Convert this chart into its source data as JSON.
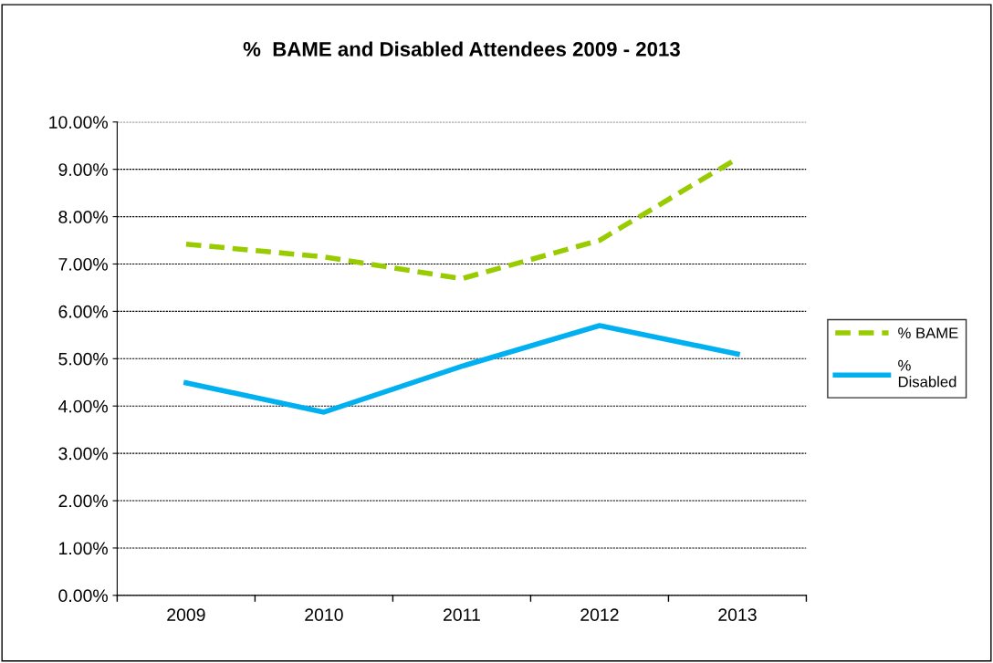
{
  "chart_data": {
    "type": "line",
    "title": "%  BAME and Disabled Attendees 2009 - 2013",
    "categories": [
      "2009",
      "2010",
      "2011",
      "2012",
      "2013"
    ],
    "series": [
      {
        "name": "% BAME",
        "color": "#99cc00",
        "line_style": "dashed",
        "values": [
          7.42,
          7.15,
          6.69,
          7.5,
          9.23
        ]
      },
      {
        "name": "% Disabled",
        "color": "#00b0f0",
        "line_style": "solid",
        "values": [
          4.49,
          3.87,
          4.84,
          5.7,
          5.1
        ]
      }
    ],
    "ylim": [
      0,
      10
    ],
    "yticks": [
      {
        "value": 0,
        "label": "0.00%"
      },
      {
        "value": 1,
        "label": "1.00%"
      },
      {
        "value": 2,
        "label": "2.00%"
      },
      {
        "value": 3,
        "label": "3.00%"
      },
      {
        "value": 4,
        "label": "4.00%"
      },
      {
        "value": 5,
        "label": "5.00%"
      },
      {
        "value": 6,
        "label": "6.00%"
      },
      {
        "value": 7,
        "label": "7.00%"
      },
      {
        "value": 8,
        "label": "8.00%"
      },
      {
        "value": 9,
        "label": "9.00%"
      },
      {
        "value": 10,
        "label": "10.00%"
      }
    ],
    "grid": "y",
    "legend": "right",
    "marker": "none"
  }
}
